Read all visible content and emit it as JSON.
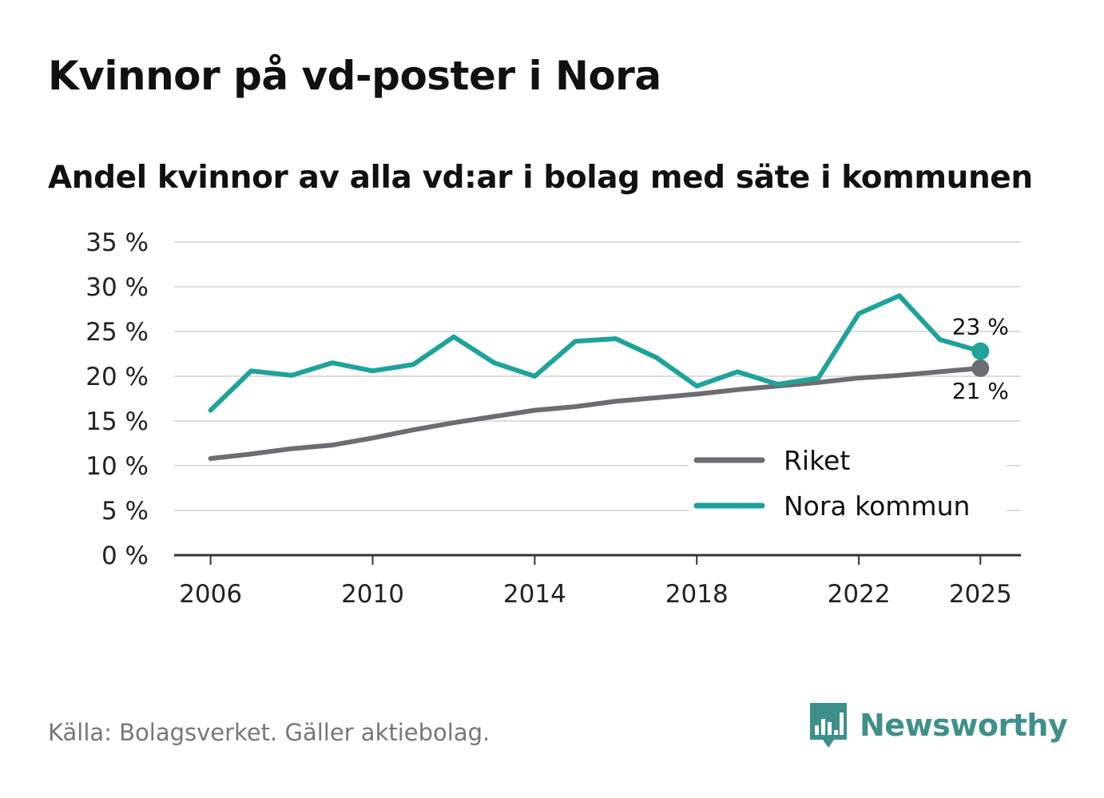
{
  "header": {
    "title": "Kvinnor på vd-poster i Nora",
    "subtitle": "Andel kvinnor av alla vd:ar i bolag med säte i kommunen"
  },
  "footer": {
    "source": "Källa: Bolagsverket. Gäller aktiebolag.",
    "brand": "Newsworthy"
  },
  "colors": {
    "riket": "#6d6c72",
    "nora": "#1ea39a",
    "grid": "#dddddd",
    "axis": "#333333",
    "brand": "#3f8f8a"
  },
  "icons": {
    "brand_logo": "newsworthy-logo-icon"
  },
  "chart_data": {
    "type": "line",
    "title": "Kvinnor på vd-poster i Nora",
    "subtitle": "Andel kvinnor av alla vd:ar i bolag med säte i kommunen",
    "xlabel": "",
    "ylabel": "",
    "x": [
      2006,
      2007,
      2008,
      2009,
      2010,
      2011,
      2012,
      2013,
      2014,
      2015,
      2016,
      2017,
      2018,
      2019,
      2020,
      2021,
      2022,
      2023,
      2024,
      2025
    ],
    "xlim": [
      2005.1,
      2026
    ],
    "ylim": [
      0,
      35
    ],
    "x_ticks": [
      2006,
      2010,
      2014,
      2018,
      2022,
      2025
    ],
    "x_tick_labels": [
      "2006",
      "2010",
      "2014",
      "2018",
      "2022",
      "2025"
    ],
    "y_ticks": [
      0,
      5,
      10,
      15,
      20,
      25,
      30,
      35
    ],
    "y_tick_labels": [
      "0 %",
      "5 %",
      "10 %",
      "15 %",
      "20 %",
      "25 %",
      "30 %",
      "35 %"
    ],
    "grid": true,
    "legend_position": "bottom-right",
    "series": [
      {
        "key": "riket",
        "name": "Riket",
        "values": [
          10.8,
          11.3,
          11.9,
          12.3,
          13.1,
          14.0,
          14.8,
          15.5,
          16.2,
          16.6,
          17.2,
          17.6,
          18.0,
          18.5,
          18.9,
          19.3,
          19.8,
          20.1,
          20.5,
          20.9
        ],
        "end_label": "21 %"
      },
      {
        "key": "nora",
        "name": "Nora kommun",
        "values": [
          16.2,
          20.6,
          20.1,
          21.5,
          20.6,
          21.3,
          24.4,
          21.5,
          20.0,
          23.9,
          24.2,
          22.1,
          18.9,
          20.5,
          19.1,
          19.8,
          27.0,
          29.0,
          24.1,
          22.8
        ],
        "end_label": "23 %"
      }
    ]
  }
}
